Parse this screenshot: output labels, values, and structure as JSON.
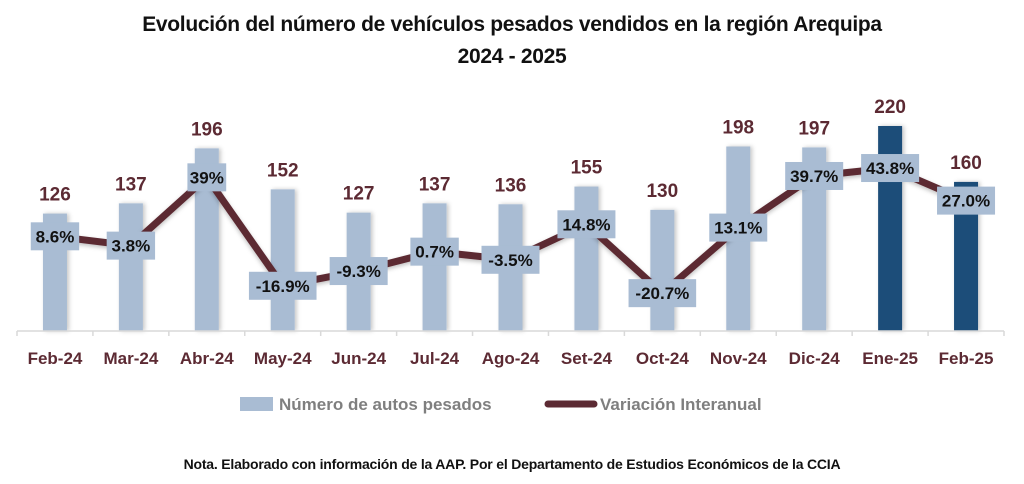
{
  "chart_data": {
    "type": "bar",
    "title": "Evolución del número de vehículos pesados vendidos en la región Arequipa",
    "subtitle": "2024 - 2025",
    "xlabel": "",
    "ylabel": "",
    "categories": [
      "Feb-24",
      "Mar-24",
      "Abr-24",
      "May-24",
      "Jun-24",
      "Jul-24",
      "Ago-24",
      "Set-24",
      "Oct-24",
      "Nov-24",
      "Dic-24",
      "Ene-25",
      "Feb-25"
    ],
    "ylim": [
      0,
      220
    ],
    "y2lim": [
      -40,
      60
    ],
    "grid": false,
    "legend_position": "bottom",
    "series": [
      {
        "name": "Número de autos pesados",
        "type": "bar",
        "values": [
          126,
          137,
          196,
          152,
          127,
          137,
          136,
          155,
          130,
          198,
          197,
          220,
          160
        ],
        "labels": [
          "126",
          "137",
          "196",
          "152",
          "127",
          "137",
          "136",
          "155",
          "130",
          "198",
          "197",
          "220",
          "160"
        ],
        "color": "#A9BCD3",
        "highlight_color": "#1F4E79",
        "highlighted": [
          false,
          false,
          false,
          false,
          false,
          false,
          false,
          false,
          false,
          false,
          false,
          true,
          true
        ]
      },
      {
        "name": "Variación Interanual",
        "type": "line",
        "values": [
          8.6,
          3.8,
          39.0,
          -16.9,
          -9.3,
          0.7,
          -3.5,
          14.8,
          -20.7,
          13.1,
          39.7,
          43.8,
          27.0
        ],
        "labels": [
          "8.6%",
          "3.8%",
          "39%",
          "-16.9%",
          "-9.3%",
          "0.7%",
          "-3.5%",
          "14.8%",
          "-20.7%",
          "13.1%",
          "39.7%",
          "43.8%",
          "27.0%"
        ],
        "color": "#5C2A33"
      }
    ],
    "note": "Nota. Elaborado con información de la AAP. Por el Departamento de Estudios Económicos de la CCIA"
  },
  "colors": {
    "label_text": "#5C2A33",
    "axis": "#D9D9D9",
    "legend_text": "#7F7F7F",
    "data_label_bg": "#A9BCD3"
  }
}
